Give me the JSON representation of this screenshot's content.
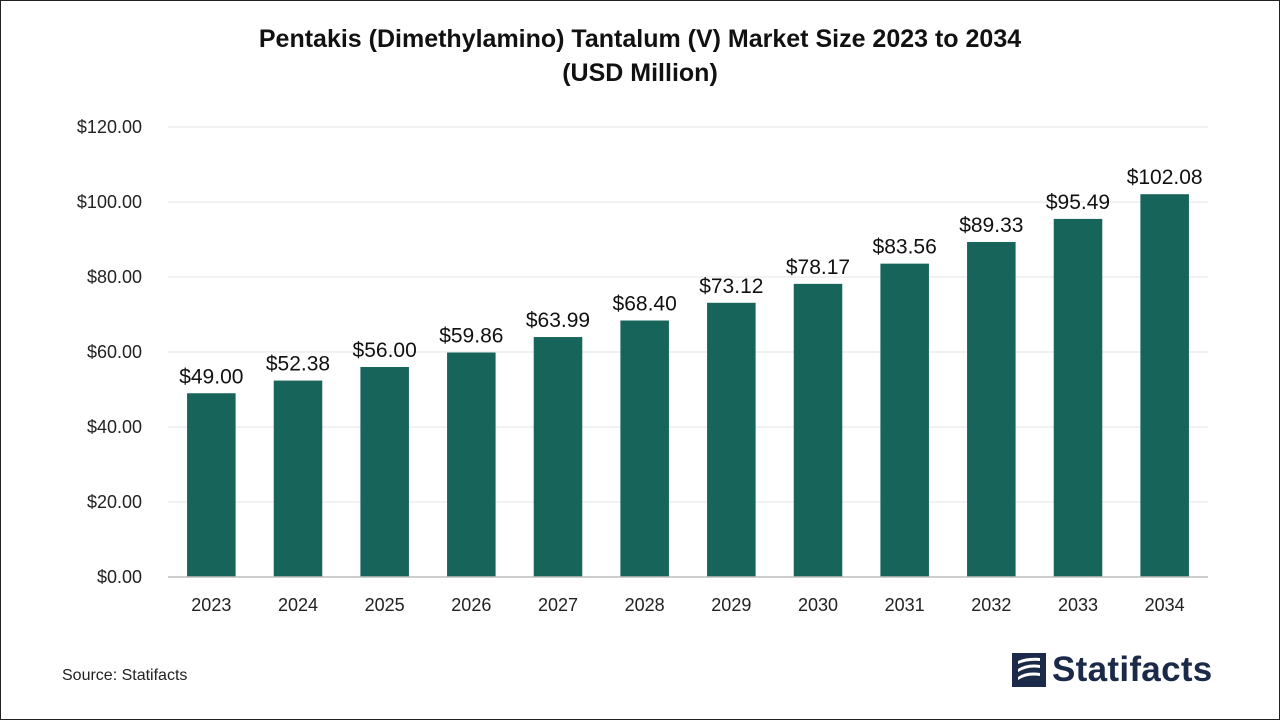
{
  "chart_data": {
    "type": "bar",
    "title_line1": "Pentakis (Dimethylamino) Tantalum (V) Market Size 2023 to 2034",
    "title_line2": "(USD Million)",
    "categories": [
      "2023",
      "2024",
      "2025",
      "2026",
      "2027",
      "2028",
      "2029",
      "2030",
      "2031",
      "2032",
      "2033",
      "2034"
    ],
    "values": [
      49.0,
      52.38,
      56.0,
      59.86,
      63.99,
      68.4,
      73.12,
      78.17,
      83.56,
      89.33,
      95.49,
      102.08
    ],
    "data_labels": [
      "$49.00",
      "$52.38",
      "$56.00",
      "$59.86",
      "$63.99",
      "$68.40",
      "$73.12",
      "$78.17",
      "$83.56",
      "$89.33",
      "$95.49",
      "$102.08"
    ],
    "y_ticks": [
      0,
      20,
      40,
      60,
      80,
      100,
      120
    ],
    "y_tick_labels": [
      "$0.00",
      "$20.00",
      "$40.00",
      "$60.00",
      "$80.00",
      "$100.00",
      "$120.00"
    ],
    "ylim": [
      0,
      120
    ],
    "xlabel": "",
    "ylabel": "",
    "grid": true,
    "legend": "none",
    "bar_color": "#17655a"
  },
  "footer": {
    "source": "Source: Statifacts",
    "logo_text": "Statifacts",
    "logo_color": "#1c2a4a"
  }
}
